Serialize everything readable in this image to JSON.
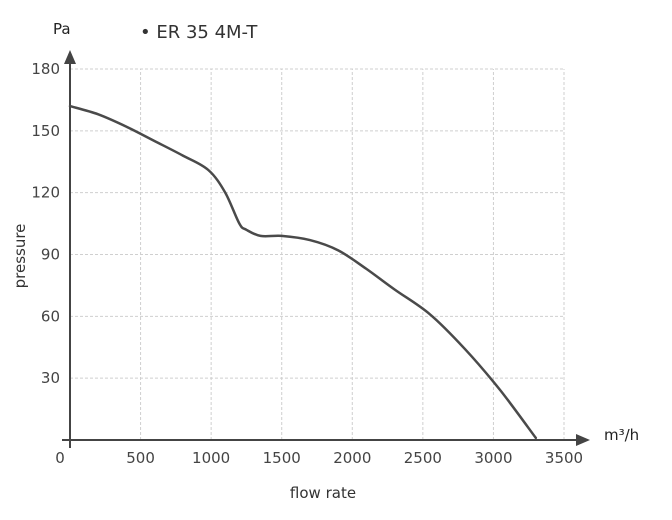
{
  "chart_data": {
    "type": "line",
    "title": "",
    "xlabel": "flow rate",
    "ylabel": "pressure",
    "x_unit": "m³/h",
    "y_unit": "Pa",
    "xlim": [
      0,
      3500
    ],
    "ylim": [
      0,
      180
    ],
    "x_ticks": [
      "0",
      "500",
      "1000",
      "1500",
      "2000",
      "2500",
      "3000",
      "3500"
    ],
    "y_ticks": [
      "30",
      "60",
      "90",
      "120",
      "150",
      "180"
    ],
    "grid": true,
    "legend_position": "top-left",
    "series": [
      {
        "name": "• ER 35 4M-T",
        "color": "#4a4a4a",
        "x": [
          0,
          200,
          400,
          600,
          800,
          980,
          1100,
          1200,
          1250,
          1350,
          1500,
          1700,
          1900,
          2100,
          2300,
          2550,
          2800,
          3050,
          3300
        ],
        "y": [
          162,
          158,
          152,
          145,
          138,
          131,
          120,
          105,
          102,
          99,
          99,
          97,
          92,
          83,
          73,
          61,
          44,
          24,
          1
        ]
      }
    ]
  }
}
